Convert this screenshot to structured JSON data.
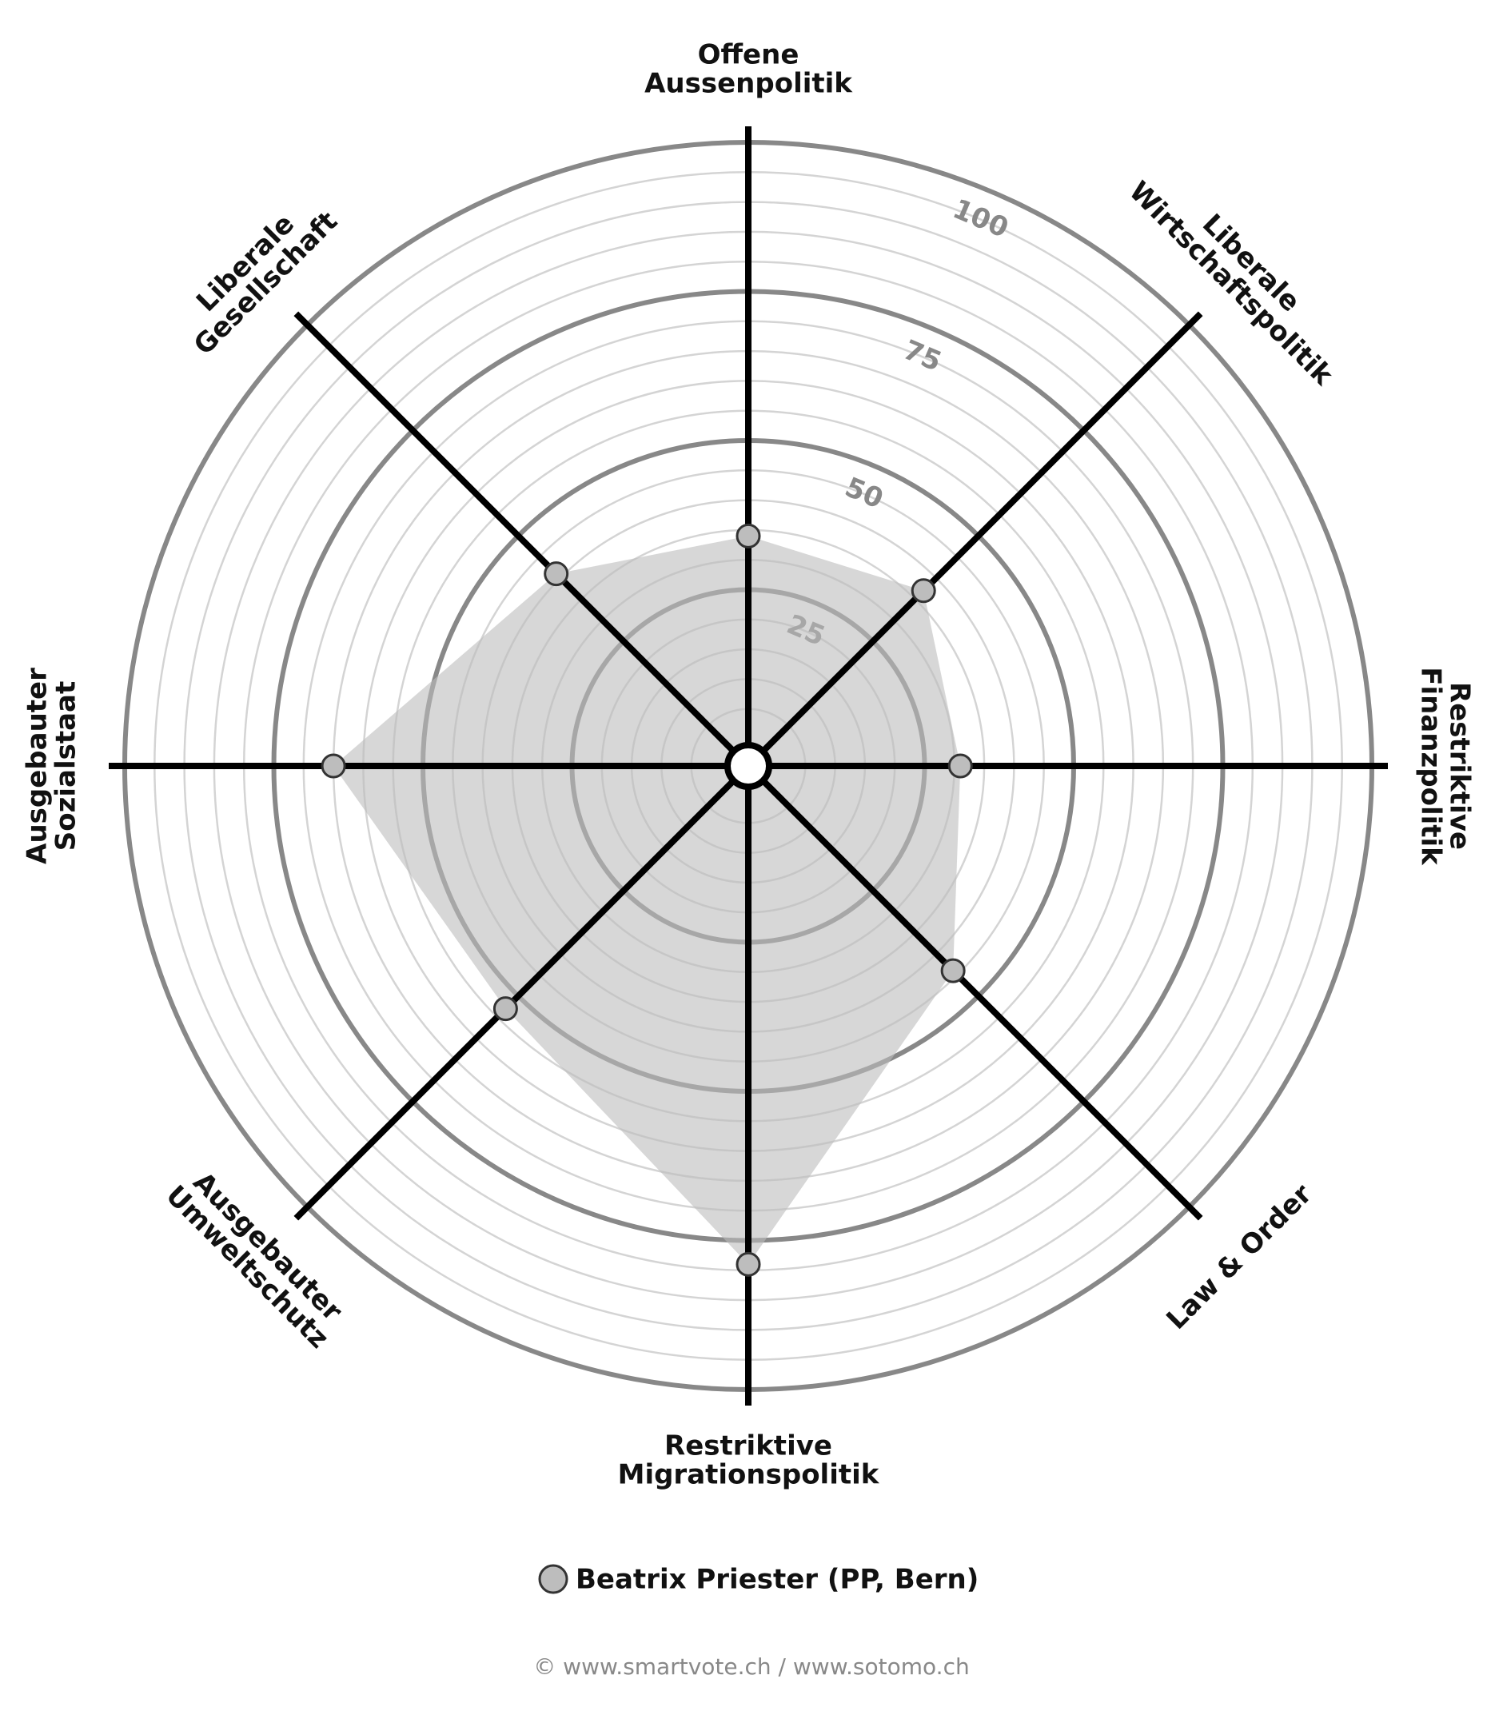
{
  "chart_data": {
    "type": "radar",
    "categories": [
      [
        "Offene",
        "Aussenpolitik"
      ],
      [
        "Liberale",
        "Wirtschaftspolitik"
      ],
      [
        "Restriktive",
        "Finanzpolitik"
      ],
      [
        "Law & Order"
      ],
      [
        "Restriktive",
        "Migrationspolitik"
      ],
      [
        "Ausgebauter",
        "Umweltschutz"
      ],
      [
        "Ausgebauter",
        "Sozialstaat"
      ],
      [
        "Liberale",
        "Gesellschaft"
      ]
    ],
    "series": [
      {
        "name": "Beatrix Priester (PP, Bern)",
        "color": "#bdbdbd",
        "values": [
          34,
          37,
          31,
          44,
          79,
          53,
          65,
          41
        ]
      }
    ],
    "ylim": [
      0,
      100
    ],
    "yticks": [
      25,
      50,
      75,
      100
    ],
    "minor_gridlines": [
      5,
      10,
      15,
      20,
      30,
      35,
      40,
      45,
      55,
      60,
      65,
      70,
      80,
      85,
      90,
      95
    ],
    "source": "© www.smartvote.ch / www.sotomo.ch"
  }
}
